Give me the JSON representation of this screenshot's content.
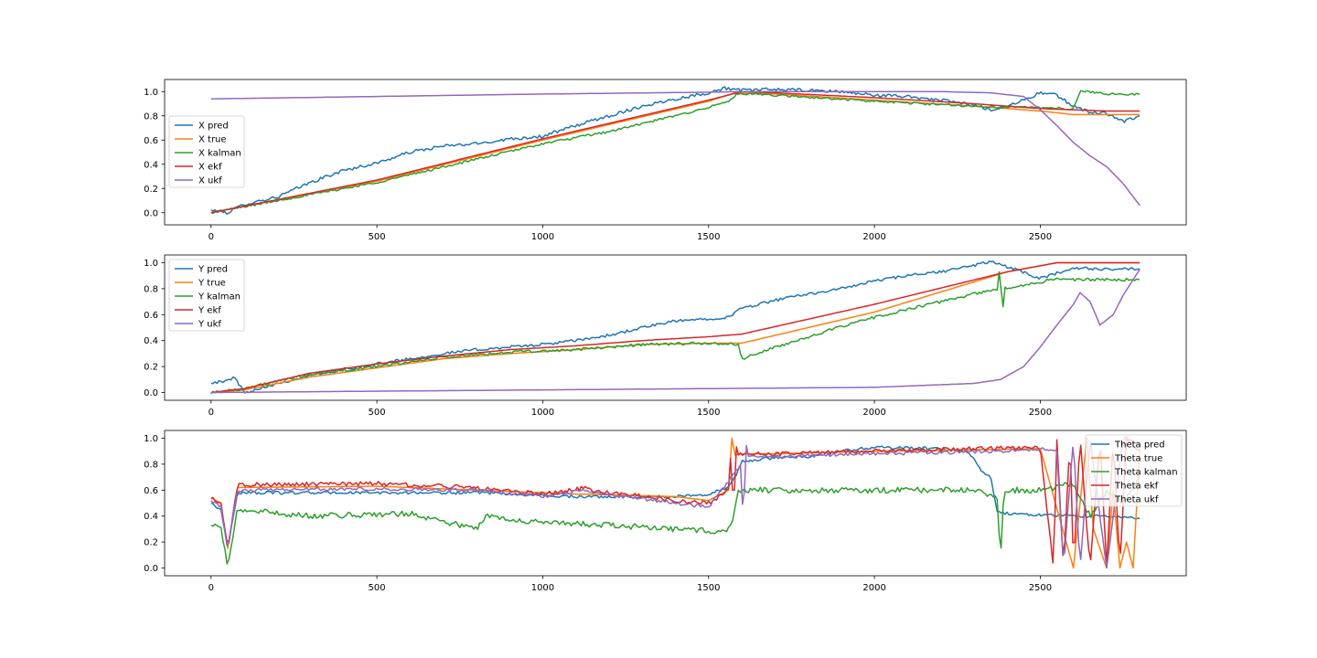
{
  "chart_data": [
    {
      "type": "line",
      "title": "",
      "xlabel": "",
      "ylabel": "",
      "xlim": [
        -140,
        2940
      ],
      "ylim": [
        -0.1,
        1.1
      ],
      "xticks": [
        0,
        500,
        1000,
        1500,
        2000,
        2500
      ],
      "yticks": [
        0.0,
        0.2,
        0.4,
        0.6,
        0.8,
        1.0
      ],
      "xtick_labels": [
        "0",
        "500",
        "1000",
        "1500",
        "2000",
        "2500"
      ],
      "ytick_labels": [
        "0.0",
        "0.2",
        "0.4",
        "0.6",
        "0.8",
        "1.0"
      ],
      "grid": false,
      "legend_position": "center-left",
      "series": [
        {
          "name": "X pred",
          "color": "#1f77b4",
          "noise": 0.012,
          "x": [
            0,
            50,
            100,
            200,
            300,
            400,
            500,
            600,
            700,
            800,
            900,
            1000,
            1100,
            1200,
            1300,
            1400,
            1500,
            1550,
            1600,
            1700,
            1800,
            1900,
            2000,
            2100,
            2200,
            2300,
            2350,
            2400,
            2450,
            2500,
            2550,
            2600,
            2650,
            2700,
            2750,
            2800
          ],
          "y": [
            0.02,
            0.0,
            0.07,
            0.13,
            0.25,
            0.35,
            0.41,
            0.5,
            0.55,
            0.57,
            0.61,
            0.63,
            0.72,
            0.8,
            0.88,
            0.94,
            0.99,
            1.03,
            1.01,
            1.02,
            1.01,
            1.0,
            0.97,
            0.96,
            0.93,
            0.89,
            0.85,
            0.88,
            0.93,
            0.99,
            0.97,
            0.88,
            0.83,
            0.82,
            0.75,
            0.8
          ]
        },
        {
          "name": "X true",
          "color": "#ff7f0e",
          "noise": 0,
          "x": [
            0,
            500,
            1000,
            1500,
            1580,
            1700,
            2000,
            2300,
            2500,
            2600,
            2800
          ],
          "y": [
            0.0,
            0.26,
            0.6,
            0.92,
            0.99,
            0.98,
            0.93,
            0.88,
            0.84,
            0.81,
            0.81
          ]
        },
        {
          "name": "X kalman",
          "color": "#2ca02c",
          "noise": 0.008,
          "x": [
            0,
            500,
            1000,
            1200,
            1400,
            1500,
            1560,
            1580,
            1600,
            1700,
            2000,
            2300,
            2400,
            2500,
            2580,
            2600,
            2620,
            2650,
            2700,
            2800
          ],
          "y": [
            0.0,
            0.25,
            0.57,
            0.67,
            0.8,
            0.87,
            0.92,
            0.97,
            0.98,
            0.97,
            0.92,
            0.88,
            0.87,
            0.87,
            0.86,
            0.86,
            1.0,
            1.0,
            0.98,
            0.98
          ]
        },
        {
          "name": "X ekf",
          "color": "#d62728",
          "noise": 0,
          "x": [
            0,
            500,
            1000,
            1500,
            1600,
            1700,
            2000,
            2300,
            2500,
            2600,
            2700,
            2800
          ],
          "y": [
            0.0,
            0.27,
            0.61,
            0.93,
            1.0,
            0.99,
            0.95,
            0.9,
            0.86,
            0.85,
            0.84,
            0.84
          ]
        },
        {
          "name": "X ukf",
          "color": "#9467bd",
          "noise": 0,
          "x": [
            0,
            500,
            1000,
            1500,
            1600,
            2000,
            2200,
            2350,
            2450,
            2500,
            2550,
            2600,
            2650,
            2700,
            2750,
            2800
          ],
          "y": [
            0.94,
            0.96,
            0.98,
            0.995,
            1.0,
            1.0,
            1.0,
            0.99,
            0.96,
            0.85,
            0.72,
            0.58,
            0.47,
            0.38,
            0.24,
            0.06
          ]
        }
      ]
    },
    {
      "type": "line",
      "title": "",
      "xlabel": "",
      "ylabel": "",
      "xlim": [
        -140,
        2940
      ],
      "ylim": [
        -0.06,
        1.06
      ],
      "xticks": [
        0,
        500,
        1000,
        1500,
        2000,
        2500
      ],
      "yticks": [
        0.0,
        0.2,
        0.4,
        0.6,
        0.8,
        1.0
      ],
      "xtick_labels": [
        "0",
        "500",
        "1000",
        "1500",
        "2000",
        "2500"
      ],
      "ytick_labels": [
        "0.0",
        "0.2",
        "0.4",
        "0.6",
        "0.8",
        "1.0"
      ],
      "grid": false,
      "legend_position": "upper-left",
      "series": [
        {
          "name": "Y pred",
          "color": "#1f77b4",
          "noise": 0.01,
          "x": [
            0,
            40,
            70,
            100,
            200,
            300,
            400,
            500,
            600,
            700,
            800,
            900,
            1000,
            1100,
            1200,
            1300,
            1400,
            1500,
            1560,
            1600,
            1700,
            1800,
            1900,
            2000,
            2100,
            2200,
            2300,
            2350,
            2400,
            2500,
            2600,
            2700,
            2800
          ],
          "y": [
            0.08,
            0.08,
            0.12,
            0.0,
            0.07,
            0.13,
            0.18,
            0.22,
            0.26,
            0.3,
            0.33,
            0.35,
            0.37,
            0.4,
            0.44,
            0.5,
            0.55,
            0.57,
            0.58,
            0.65,
            0.71,
            0.76,
            0.8,
            0.86,
            0.9,
            0.93,
            0.98,
            1.01,
            0.97,
            0.88,
            0.96,
            0.95,
            0.95
          ]
        },
        {
          "name": "Y true",
          "color": "#ff7f0e",
          "noise": 0,
          "x": [
            0,
            100,
            300,
            500,
            700,
            900,
            1100,
            1300,
            1500,
            1600,
            2000,
            2400,
            2550,
            2800
          ],
          "y": [
            0.0,
            0.02,
            0.12,
            0.19,
            0.26,
            0.3,
            0.33,
            0.37,
            0.38,
            0.38,
            0.62,
            0.93,
            1.0,
            1.0
          ]
        },
        {
          "name": "Y kalman",
          "color": "#2ca02c",
          "noise": 0.01,
          "x": [
            0,
            100,
            300,
            500,
            700,
            900,
            1100,
            1300,
            1500,
            1590,
            1600,
            1610,
            1800,
            2000,
            2200,
            2370,
            2380,
            2385,
            2390,
            2500,
            2550,
            2600,
            2800
          ],
          "y": [
            0.0,
            0.03,
            0.14,
            0.2,
            0.27,
            0.31,
            0.33,
            0.37,
            0.38,
            0.37,
            0.25,
            0.27,
            0.43,
            0.58,
            0.7,
            0.8,
            1.0,
            0.47,
            0.8,
            0.85,
            0.88,
            0.87,
            0.87
          ]
        },
        {
          "name": "Y ekf",
          "color": "#d62728",
          "noise": 0,
          "x": [
            0,
            100,
            300,
            500,
            700,
            900,
            1100,
            1300,
            1500,
            1600,
            2000,
            2400,
            2550,
            2800
          ],
          "y": [
            0.0,
            0.03,
            0.15,
            0.22,
            0.28,
            0.33,
            0.36,
            0.4,
            0.43,
            0.45,
            0.68,
            0.93,
            1.0,
            1.0
          ]
        },
        {
          "name": "Y ukf",
          "color": "#9467bd",
          "noise": 0,
          "x": [
            0,
            500,
            1000,
            1500,
            2000,
            2200,
            2300,
            2380,
            2450,
            2500,
            2550,
            2600,
            2620,
            2650,
            2680,
            2720,
            2750,
            2800
          ],
          "y": [
            0.0,
            0.01,
            0.02,
            0.03,
            0.04,
            0.06,
            0.07,
            0.1,
            0.2,
            0.35,
            0.52,
            0.68,
            0.77,
            0.7,
            0.52,
            0.6,
            0.75,
            0.95
          ]
        }
      ]
    },
    {
      "type": "line",
      "title": "",
      "xlabel": "",
      "ylabel": "",
      "xlim": [
        -140,
        2940
      ],
      "ylim": [
        -0.06,
        1.06
      ],
      "xticks": [
        0,
        500,
        1000,
        1500,
        2000,
        2500
      ],
      "yticks": [
        0.0,
        0.2,
        0.4,
        0.6,
        0.8,
        1.0
      ],
      "xtick_labels": [
        "0",
        "500",
        "1000",
        "1500",
        "2000",
        "2500"
      ],
      "ytick_labels": [
        "0.0",
        "0.2",
        "0.4",
        "0.6",
        "0.8",
        "1.0"
      ],
      "grid": false,
      "legend_position": "upper-right",
      "series": [
        {
          "name": "Theta pred",
          "color": "#1f77b4",
          "noise": 0.01,
          "x": [
            0,
            30,
            50,
            80,
            500,
            800,
            1100,
            1400,
            1500,
            1560,
            1580,
            1600,
            1700,
            1800,
            1900,
            2000,
            2200,
            2280,
            2300,
            2320,
            2350,
            2370,
            2400,
            2500,
            2600,
            2700,
            2800
          ],
          "y": [
            0.5,
            0.45,
            0.15,
            0.58,
            0.58,
            0.58,
            0.55,
            0.55,
            0.57,
            0.62,
            0.7,
            0.82,
            0.85,
            0.86,
            0.9,
            0.93,
            0.92,
            0.9,
            0.85,
            0.75,
            0.7,
            0.44,
            0.42,
            0.41,
            0.4,
            0.4,
            0.38
          ]
        },
        {
          "name": "Theta true",
          "color": "#ff7f0e",
          "noise": 0,
          "x": [
            0,
            30,
            50,
            80,
            500,
            800,
            1100,
            1400,
            1500,
            1560,
            1570,
            1580,
            1600,
            1700,
            2000,
            2500,
            2600,
            2640,
            2660,
            2700,
            2720,
            2740,
            2760,
            2780,
            2800
          ],
          "y": [
            0.54,
            0.5,
            0.15,
            0.62,
            0.63,
            0.6,
            0.57,
            0.55,
            0.52,
            0.6,
            1.0,
            0.87,
            0.88,
            0.88,
            0.9,
            0.92,
            0.0,
            1.0,
            0.3,
            0.0,
            0.6,
            0.0,
            0.2,
            0.0,
            0.9
          ]
        },
        {
          "name": "Theta kalman",
          "color": "#2ca02c",
          "noise": 0.02,
          "x": [
            0,
            30,
            50,
            80,
            300,
            600,
            800,
            830,
            1000,
            1200,
            1400,
            1550,
            1570,
            1590,
            1600,
            1700,
            2000,
            2300,
            2370,
            2380,
            2390,
            2500,
            2600,
            2650,
            2700,
            2750,
            2800
          ],
          "y": [
            0.33,
            0.3,
            0.02,
            0.45,
            0.4,
            0.42,
            0.3,
            0.4,
            0.35,
            0.33,
            0.3,
            0.28,
            0.35,
            0.6,
            0.6,
            0.6,
            0.6,
            0.6,
            0.55,
            0.05,
            0.6,
            0.6,
            0.65,
            0.4,
            0.6,
            0.5,
            0.7
          ]
        },
        {
          "name": "Theta ekf",
          "color": "#d62728",
          "noise": 0.015,
          "x": [
            0,
            30,
            50,
            80,
            500,
            800,
            1000,
            1130,
            1150,
            1400,
            1500,
            1560,
            1570,
            1575,
            1580,
            1590,
            1600,
            1700,
            2000,
            2500,
            2540,
            2550,
            2570,
            2590,
            2600,
            2620,
            2650,
            2680,
            2700,
            2720,
            2740,
            2760,
            2800
          ],
          "y": [
            0.54,
            0.5,
            0.15,
            0.64,
            0.65,
            0.62,
            0.57,
            0.62,
            0.6,
            0.52,
            0.5,
            0.6,
            1.0,
            0.0,
            1.0,
            0.86,
            0.88,
            0.88,
            0.9,
            0.93,
            0.0,
            1.0,
            0.0,
            1.0,
            0.0,
            1.0,
            0.0,
            1.0,
            0.0,
            1.0,
            0.0,
            1.0,
            0.9
          ]
        },
        {
          "name": "Theta ukf",
          "color": "#9467bd",
          "noise": 0.012,
          "x": [
            0,
            30,
            50,
            80,
            500,
            800,
            1000,
            1130,
            1150,
            1400,
            1500,
            1600,
            1605,
            1610,
            1620,
            1700,
            2000,
            2400,
            2500,
            2550,
            2570,
            2600,
            2620,
            2650,
            2700,
            2750,
            2800
          ],
          "y": [
            0.52,
            0.48,
            0.13,
            0.6,
            0.61,
            0.6,
            0.55,
            0.6,
            0.58,
            0.5,
            0.47,
            0.8,
            0.0,
            1.0,
            0.85,
            0.86,
            0.88,
            0.9,
            0.92,
            0.9,
            0.0,
            1.0,
            0.0,
            1.0,
            0.0,
            1.0,
            0.95
          ]
        }
      ]
    }
  ]
}
